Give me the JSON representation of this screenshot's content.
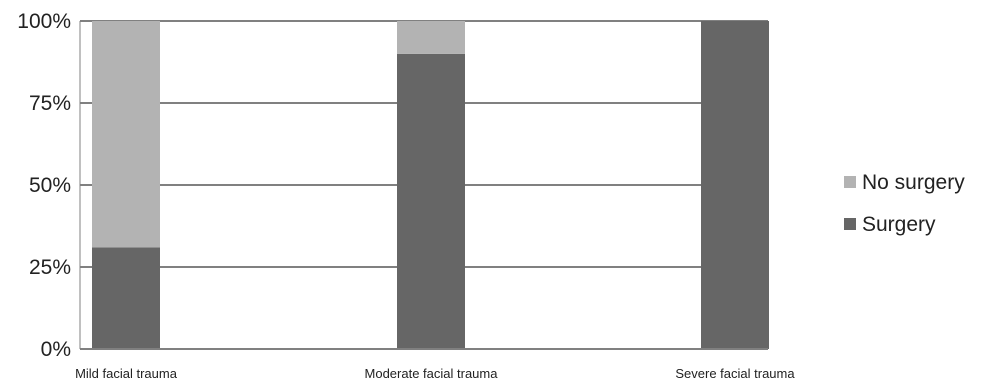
{
  "chart_data": {
    "type": "bar",
    "stacked": true,
    "percent": true,
    "categories": [
      "Mild facial trauma",
      "Moderate facial trauma",
      "Severe facial trauma"
    ],
    "series": [
      {
        "name": "Surgery",
        "values": [
          31,
          90,
          100
        ]
      },
      {
        "name": "No surgery",
        "values": [
          69,
          10,
          0
        ]
      }
    ],
    "y_ticks": [
      "0%",
      "25%",
      "50%",
      "75%",
      "100%"
    ],
    "ylim": [
      0,
      100
    ],
    "grid": true,
    "legend": "right",
    "title": "",
    "xlabel": "",
    "ylabel": "",
    "colors": {
      "Surgery": "#666666",
      "No surgery": "#b3b3b3",
      "grid": "#808080",
      "axis": "#808080"
    }
  }
}
